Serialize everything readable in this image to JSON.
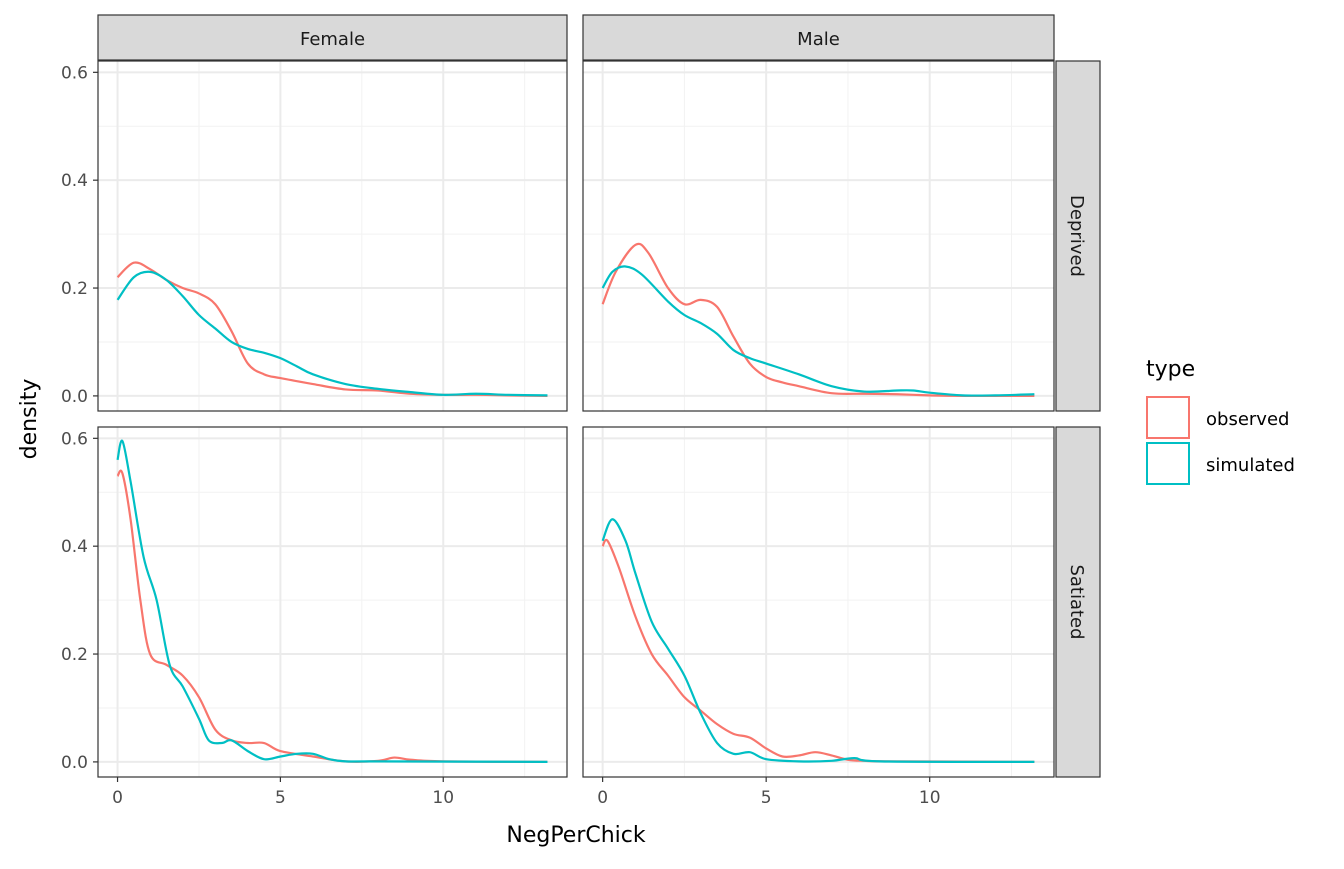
{
  "chart_data": {
    "type": "line",
    "xlabel": "NegPerChick",
    "ylabel": "density",
    "xlim": [
      -0.6,
      13.8
    ],
    "ylim": [
      -0.028,
      0.621
    ],
    "x_ticks": [
      0,
      5,
      10
    ],
    "x_tick_labels": [
      "0",
      "5",
      "10"
    ],
    "y_ticks": [
      0,
      0.2,
      0.4,
      0.6
    ],
    "y_tick_labels": [
      "0.0",
      "0.2",
      "0.4",
      "0.6"
    ],
    "grid": true,
    "col_facets": [
      "Female",
      "Male"
    ],
    "row_facets": [
      "Deprived",
      "Satiated"
    ],
    "legend": {
      "title": "type",
      "position": "right",
      "entries": [
        "observed",
        "simulated"
      ]
    },
    "colors": {
      "observed": "#F8766D",
      "simulated": "#00BFC4"
    },
    "panels": [
      {
        "col": "Female",
        "row": "Deprived",
        "series": [
          {
            "name": "observed",
            "points": [
              [
                0,
                0.22
              ],
              [
                0.5,
                0.247
              ],
              [
                1,
                0.235
              ],
              [
                1.5,
                0.215
              ],
              [
                2,
                0.2
              ],
              [
                2.5,
                0.19
              ],
              [
                3,
                0.17
              ],
              [
                3.5,
                0.12
              ],
              [
                4,
                0.06
              ],
              [
                4.5,
                0.04
              ],
              [
                5,
                0.033
              ],
              [
                6,
                0.022
              ],
              [
                7,
                0.012
              ],
              [
                8,
                0.01
              ],
              [
                9,
                0.004
              ],
              [
                10,
                0.002
              ],
              [
                11,
                0.002
              ],
              [
                12,
                0.001
              ],
              [
                13.2,
                0
              ]
            ]
          },
          {
            "name": "simulated",
            "points": [
              [
                0,
                0.178
              ],
              [
                0.5,
                0.22
              ],
              [
                1,
                0.23
              ],
              [
                1.5,
                0.215
              ],
              [
                2,
                0.185
              ],
              [
                2.5,
                0.15
              ],
              [
                3,
                0.125
              ],
              [
                3.5,
                0.1
              ],
              [
                4,
                0.087
              ],
              [
                4.5,
                0.08
              ],
              [
                5,
                0.07
              ],
              [
                5.5,
                0.055
              ],
              [
                6,
                0.04
              ],
              [
                7,
                0.022
              ],
              [
                8,
                0.013
              ],
              [
                9,
                0.007
              ],
              [
                10,
                0.002
              ],
              [
                11,
                0.004
              ],
              [
                12,
                0.002
              ],
              [
                13.2,
                0.001
              ]
            ]
          }
        ]
      },
      {
        "col": "Male",
        "row": "Deprived",
        "series": [
          {
            "name": "observed",
            "points": [
              [
                0,
                0.17
              ],
              [
                0.4,
                0.23
              ],
              [
                1,
                0.28
              ],
              [
                1.4,
                0.265
              ],
              [
                2,
                0.2
              ],
              [
                2.5,
                0.17
              ],
              [
                3,
                0.178
              ],
              [
                3.5,
                0.165
              ],
              [
                4,
                0.11
              ],
              [
                4.5,
                0.06
              ],
              [
                5,
                0.035
              ],
              [
                5.5,
                0.025
              ],
              [
                6,
                0.018
              ],
              [
                7,
                0.005
              ],
              [
                8,
                0.004
              ],
              [
                9,
                0.003
              ],
              [
                10,
                0.001
              ],
              [
                11,
                0
              ],
              [
                13.2,
                0
              ]
            ]
          },
          {
            "name": "simulated",
            "points": [
              [
                0,
                0.2
              ],
              [
                0.3,
                0.23
              ],
              [
                0.7,
                0.24
              ],
              [
                1.2,
                0.225
              ],
              [
                2,
                0.175
              ],
              [
                2.5,
                0.15
              ],
              [
                3,
                0.135
              ],
              [
                3.5,
                0.115
              ],
              [
                4,
                0.085
              ],
              [
                4.5,
                0.07
              ],
              [
                5,
                0.06
              ],
              [
                6,
                0.04
              ],
              [
                7,
                0.018
              ],
              [
                8,
                0.008
              ],
              [
                9,
                0.01
              ],
              [
                9.5,
                0.01
              ],
              [
                10,
                0.006
              ],
              [
                11,
                0.001
              ],
              [
                12,
                0.001
              ],
              [
                13.2,
                0.003
              ]
            ]
          }
        ]
      },
      {
        "col": "Female",
        "row": "Satiated",
        "series": [
          {
            "name": "observed",
            "points": [
              [
                0,
                0.53
              ],
              [
                0.15,
                0.535
              ],
              [
                0.4,
                0.45
              ],
              [
                0.7,
                0.3
              ],
              [
                1,
                0.2
              ],
              [
                1.5,
                0.18
              ],
              [
                2,
                0.16
              ],
              [
                2.5,
                0.12
              ],
              [
                3,
                0.06
              ],
              [
                3.5,
                0.04
              ],
              [
                4,
                0.035
              ],
              [
                4.5,
                0.035
              ],
              [
                5,
                0.02
              ],
              [
                6,
                0.01
              ],
              [
                7,
                0.001
              ],
              [
                8,
                0.002
              ],
              [
                8.5,
                0.008
              ],
              [
                9,
                0.004
              ],
              [
                10,
                0.001
              ],
              [
                13.2,
                0
              ]
            ]
          },
          {
            "name": "simulated",
            "points": [
              [
                0,
                0.56
              ],
              [
                0.15,
                0.595
              ],
              [
                0.4,
                0.52
              ],
              [
                0.8,
                0.38
              ],
              [
                1.2,
                0.3
              ],
              [
                1.6,
                0.18
              ],
              [
                2,
                0.14
              ],
              [
                2.5,
                0.08
              ],
              [
                2.8,
                0.04
              ],
              [
                3.2,
                0.035
              ],
              [
                3.5,
                0.04
              ],
              [
                4,
                0.02
              ],
              [
                4.5,
                0.005
              ],
              [
                5,
                0.01
              ],
              [
                5.5,
                0.015
              ],
              [
                6,
                0.015
              ],
              [
                6.5,
                0.005
              ],
              [
                7,
                0.001
              ],
              [
                8,
                0.001
              ],
              [
                13.2,
                0
              ]
            ]
          }
        ]
      },
      {
        "col": "Male",
        "row": "Satiated",
        "series": [
          {
            "name": "observed",
            "points": [
              [
                0,
                0.4
              ],
              [
                0.15,
                0.41
              ],
              [
                0.5,
                0.36
              ],
              [
                1,
                0.27
              ],
              [
                1.5,
                0.2
              ],
              [
                2,
                0.16
              ],
              [
                2.5,
                0.12
              ],
              [
                3,
                0.095
              ],
              [
                3.5,
                0.07
              ],
              [
                4,
                0.052
              ],
              [
                4.5,
                0.045
              ],
              [
                5,
                0.025
              ],
              [
                5.5,
                0.01
              ],
              [
                6,
                0.012
              ],
              [
                6.5,
                0.018
              ],
              [
                7,
                0.012
              ],
              [
                7.5,
                0.004
              ],
              [
                8,
                0.002
              ],
              [
                9,
                0.001
              ],
              [
                13.2,
                0
              ]
            ]
          },
          {
            "name": "simulated",
            "points": [
              [
                0,
                0.41
              ],
              [
                0.3,
                0.45
              ],
              [
                0.7,
                0.41
              ],
              [
                1,
                0.35
              ],
              [
                1.5,
                0.26
              ],
              [
                2,
                0.21
              ],
              [
                2.5,
                0.16
              ],
              [
                3,
                0.09
              ],
              [
                3.5,
                0.035
              ],
              [
                4,
                0.015
              ],
              [
                4.5,
                0.018
              ],
              [
                5,
                0.005
              ],
              [
                6,
                0.001
              ],
              [
                7,
                0.002
              ],
              [
                7.7,
                0.007
              ],
              [
                8.5,
                0.001
              ],
              [
                13.2,
                0
              ]
            ]
          }
        ]
      }
    ]
  }
}
